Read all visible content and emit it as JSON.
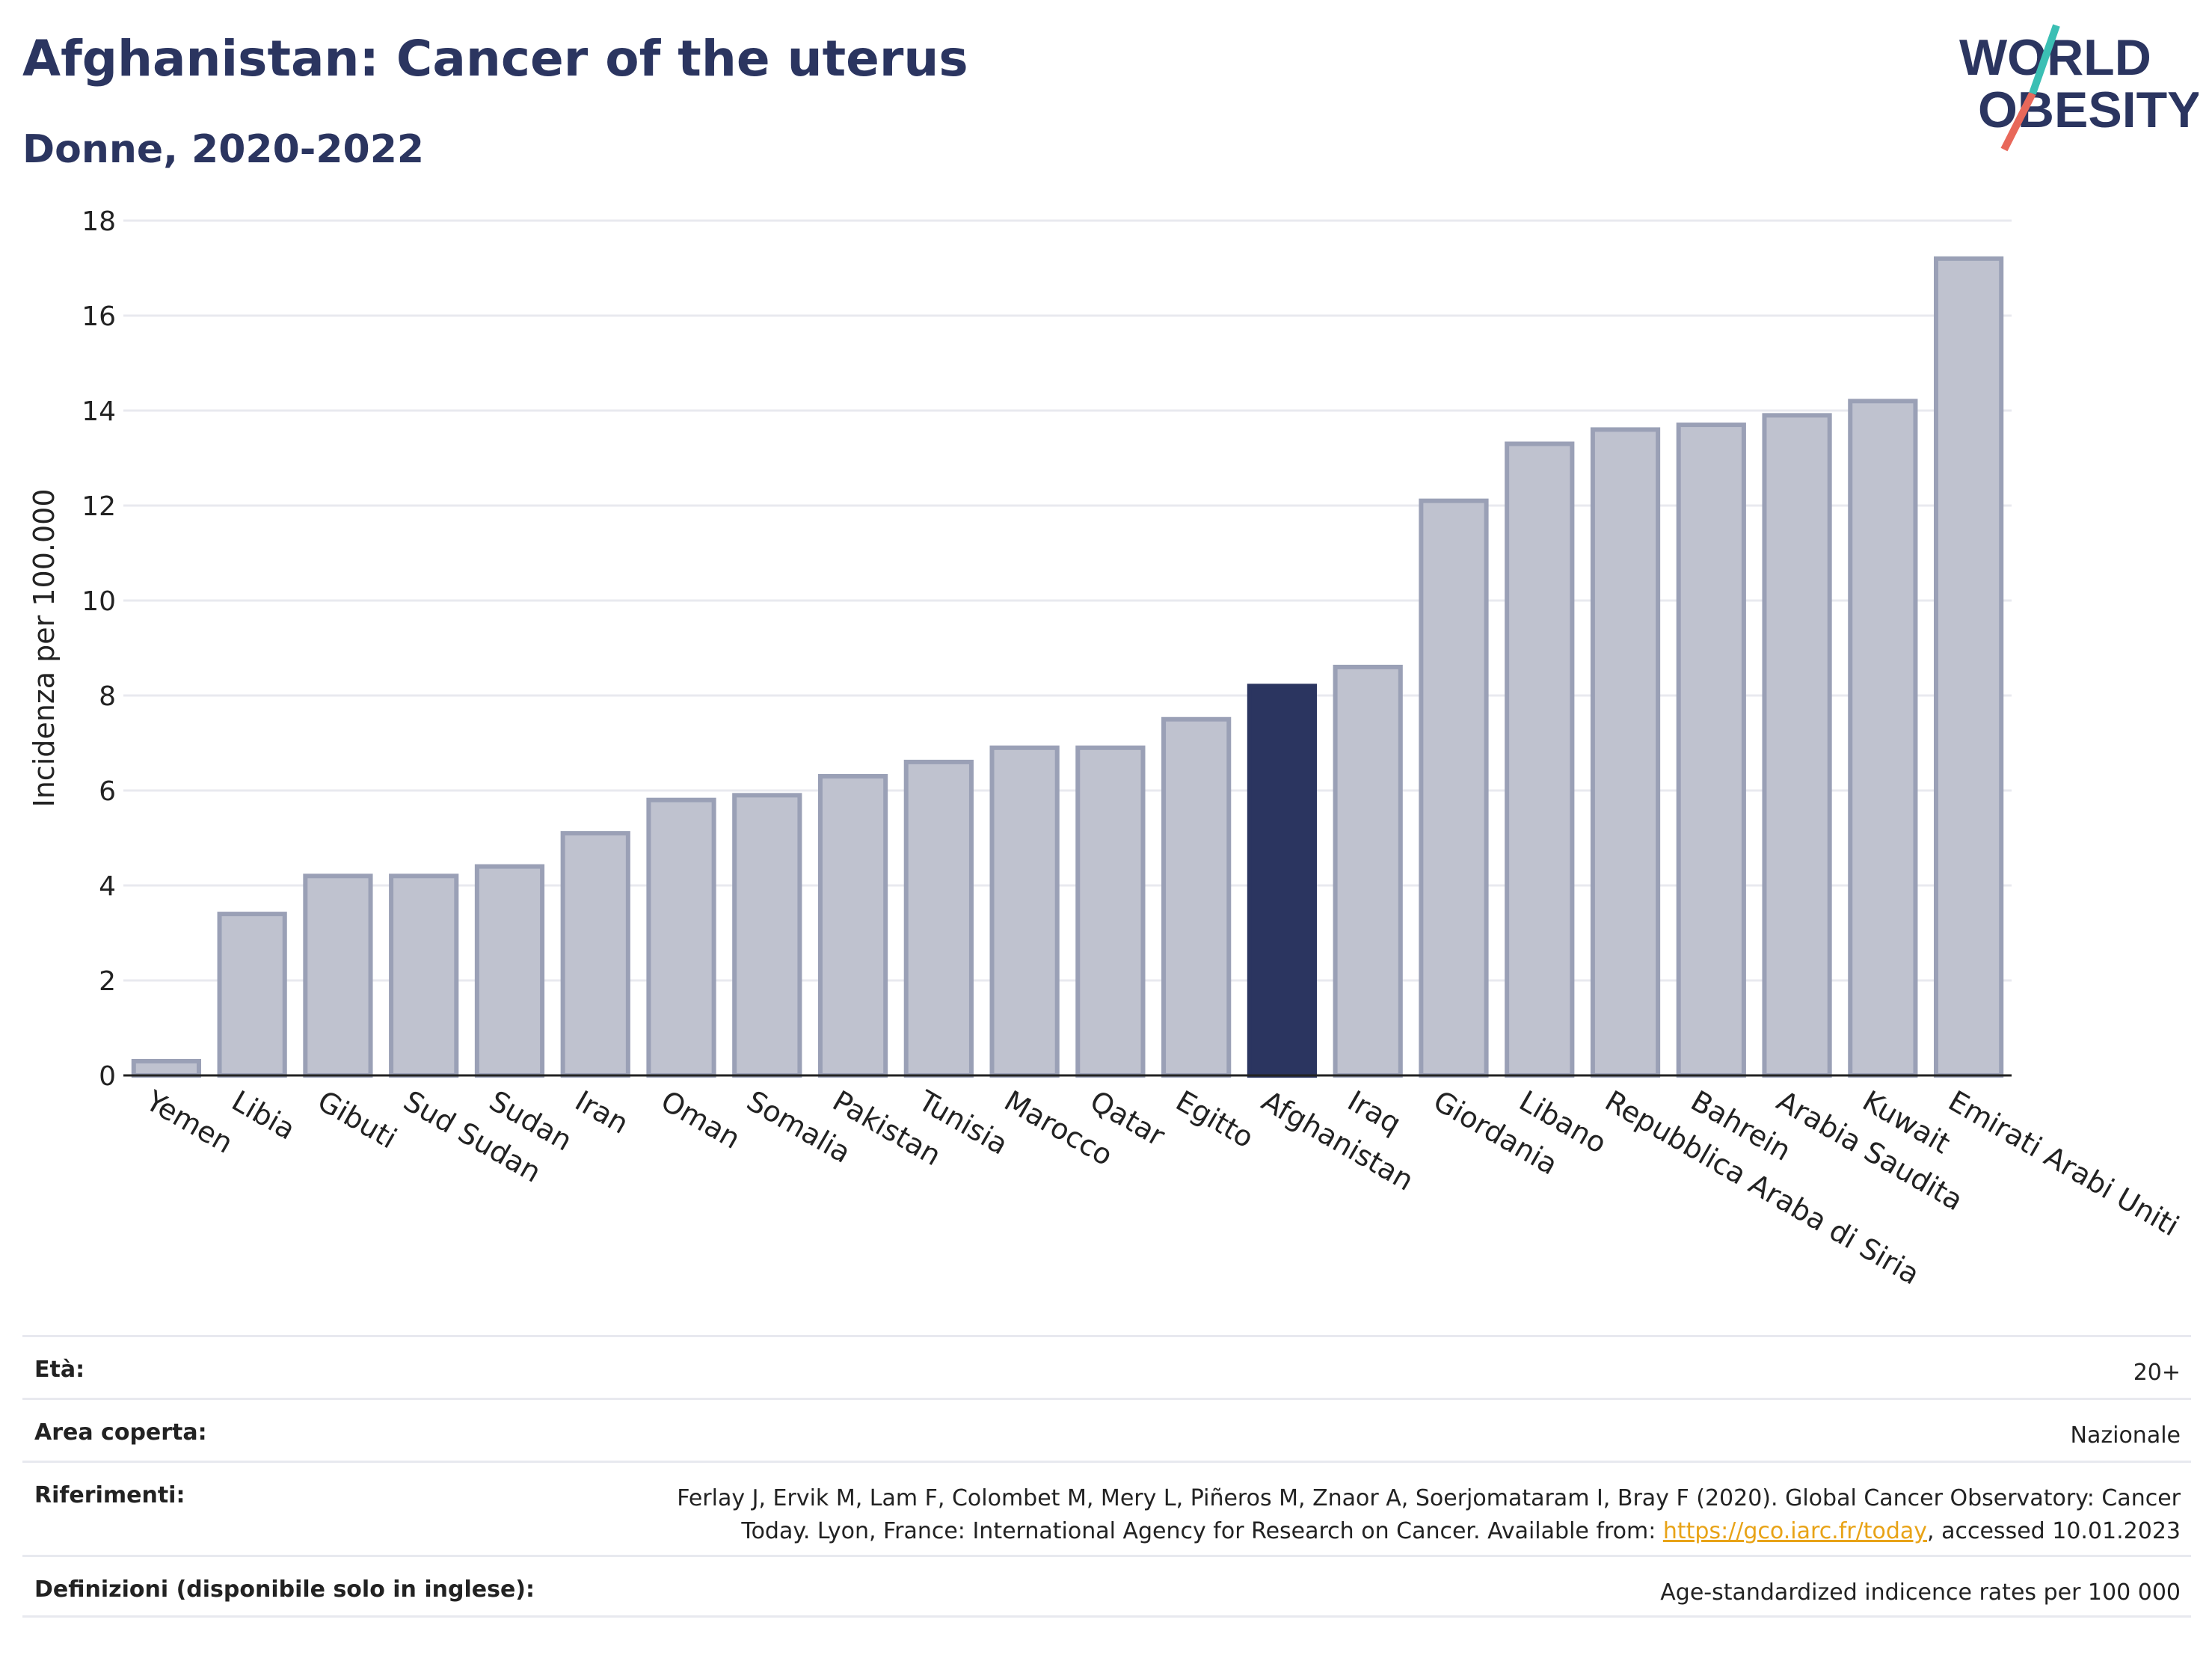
{
  "header": {
    "title": "Afghanistan: Cancer of the uterus",
    "subtitle": "Donne, 2020-2022"
  },
  "logo": {
    "line1": "WORLD",
    "line2": "OBESITY",
    "accent_teal": "#3bbfb4",
    "accent_red": "#e8685a"
  },
  "chart_data": {
    "type": "bar",
    "title": "Afghanistan: Cancer of the uterus",
    "subtitle": "Donne, 2020-2022",
    "xlabel": "",
    "ylabel": "Incidenza per 100.000",
    "ylim": [
      0,
      18
    ],
    "yticks": [
      0,
      2,
      4,
      6,
      8,
      10,
      12,
      14,
      16,
      18
    ],
    "grid": true,
    "highlight": "Afghanistan",
    "colors": {
      "default": "#bfc2cf",
      "default_border": "#9aa0b6",
      "highlight": "#2b3560"
    },
    "categories": [
      "Yemen",
      "Libia",
      "Gibuti",
      "Sud Sudan",
      "Sudan",
      "Iran",
      "Oman",
      "Somalia",
      "Pakistan",
      "Tunisia",
      "Marocco",
      "Qatar",
      "Egitto",
      "Afghanistan",
      "Iraq",
      "Giordania",
      "Libano",
      "Repubblica Araba di Siria",
      "Bahrein",
      "Arabia Saudita",
      "Kuwait",
      "Emirati Arabi Uniti"
    ],
    "values": [
      0.3,
      3.4,
      4.2,
      4.2,
      4.4,
      5.1,
      5.8,
      5.9,
      6.3,
      6.6,
      6.9,
      6.9,
      7.5,
      8.2,
      8.6,
      12.1,
      13.3,
      13.6,
      13.7,
      13.9,
      14.2,
      17.2
    ]
  },
  "meta": {
    "eta_label": "Età:",
    "eta_value": "20+",
    "area_label": "Area coperta:",
    "area_value": "Nazionale",
    "rif_label": "Riferimenti:",
    "rif_line1": "Ferlay J, Ervik M, Lam F, Colombet M, Mery L, Piñeros M, Znaor A, Soerjomataram I, Bray F (2020). Global Cancer Observatory: Cancer",
    "rif_line2_a": "Today. Lyon, France: International Agency for Research on Cancer. Available from: ",
    "rif_link": "https://gco.iarc.fr/today",
    "rif_line2_b": ", accessed 10.01.2023",
    "def_label": "Definizioni (disponibile solo in inglese):",
    "def_value": "Age-standardized indicence rates per 100 000"
  }
}
